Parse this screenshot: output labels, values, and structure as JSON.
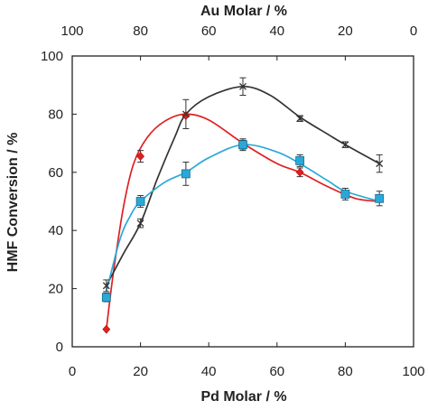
{
  "chart_data": {
    "type": "scatter",
    "xlabel": "Pd Molar / %",
    "x2label": "Au Molar / %",
    "ylabel": "HMF Conversion / %",
    "xlim": [
      0,
      100
    ],
    "ylim": [
      0,
      100
    ],
    "x_ticks": [
      0,
      20,
      40,
      60,
      80,
      100
    ],
    "x2_ticks": [
      100,
      80,
      60,
      40,
      20,
      0
    ],
    "y_ticks": [
      0,
      20,
      40,
      60,
      80,
      100
    ],
    "grid": false,
    "legend": "none",
    "series": [
      {
        "color": "#e02020",
        "marker": "diamond",
        "x": [
          10,
          20,
          33.3,
          50,
          66.7,
          80,
          90
        ],
        "y": [
          6,
          65.5,
          79.5,
          69.5,
          60,
          52.5,
          51
        ],
        "err": [
          0,
          2,
          0,
          1.5,
          1.5,
          0,
          0
        ],
        "curve": [
          [
            10,
            6
          ],
          [
            12,
            25
          ],
          [
            15,
            48
          ],
          [
            18,
            63
          ],
          [
            22,
            72
          ],
          [
            27,
            77.5
          ],
          [
            33,
            80
          ],
          [
            40,
            78
          ],
          [
            50,
            70
          ],
          [
            60,
            63
          ],
          [
            66.7,
            60
          ],
          [
            75,
            55
          ],
          [
            83,
            51
          ],
          [
            90,
            50
          ]
        ]
      },
      {
        "color": "#333333",
        "marker": "x",
        "x": [
          10,
          20,
          33.3,
          50,
          66.7,
          80,
          90
        ],
        "y": [
          21,
          42.5,
          80,
          89.5,
          78.5,
          69.5,
          63
        ],
        "err": [
          2,
          1.5,
          5,
          3,
          1,
          1,
          3
        ],
        "curve": [
          [
            10,
            21
          ],
          [
            15,
            32
          ],
          [
            20,
            42.5
          ],
          [
            25,
            58
          ],
          [
            30,
            72
          ],
          [
            33.3,
            80
          ],
          [
            40,
            86
          ],
          [
            50,
            89.5
          ],
          [
            58,
            86.5
          ],
          [
            66.7,
            79
          ],
          [
            75,
            73
          ],
          [
            80,
            69.5
          ],
          [
            90,
            63
          ]
        ]
      },
      {
        "color": "#2aa9d8",
        "marker": "square",
        "x": [
          10,
          20,
          33.3,
          50,
          66.7,
          80,
          90
        ],
        "y": [
          17,
          50,
          59.5,
          69.5,
          64,
          52.5,
          51
        ],
        "err": [
          1.5,
          2,
          4,
          2,
          2,
          2,
          2.5
        ],
        "curve": [
          [
            10,
            19
          ],
          [
            14,
            37
          ],
          [
            17,
            45
          ],
          [
            20,
            50
          ],
          [
            27,
            56.5
          ],
          [
            33.3,
            60
          ],
          [
            40,
            65
          ],
          [
            50,
            69.5
          ],
          [
            60,
            67
          ],
          [
            66.7,
            63
          ],
          [
            75,
            57
          ],
          [
            80,
            53.5
          ],
          [
            90,
            50
          ]
        ]
      }
    ]
  }
}
